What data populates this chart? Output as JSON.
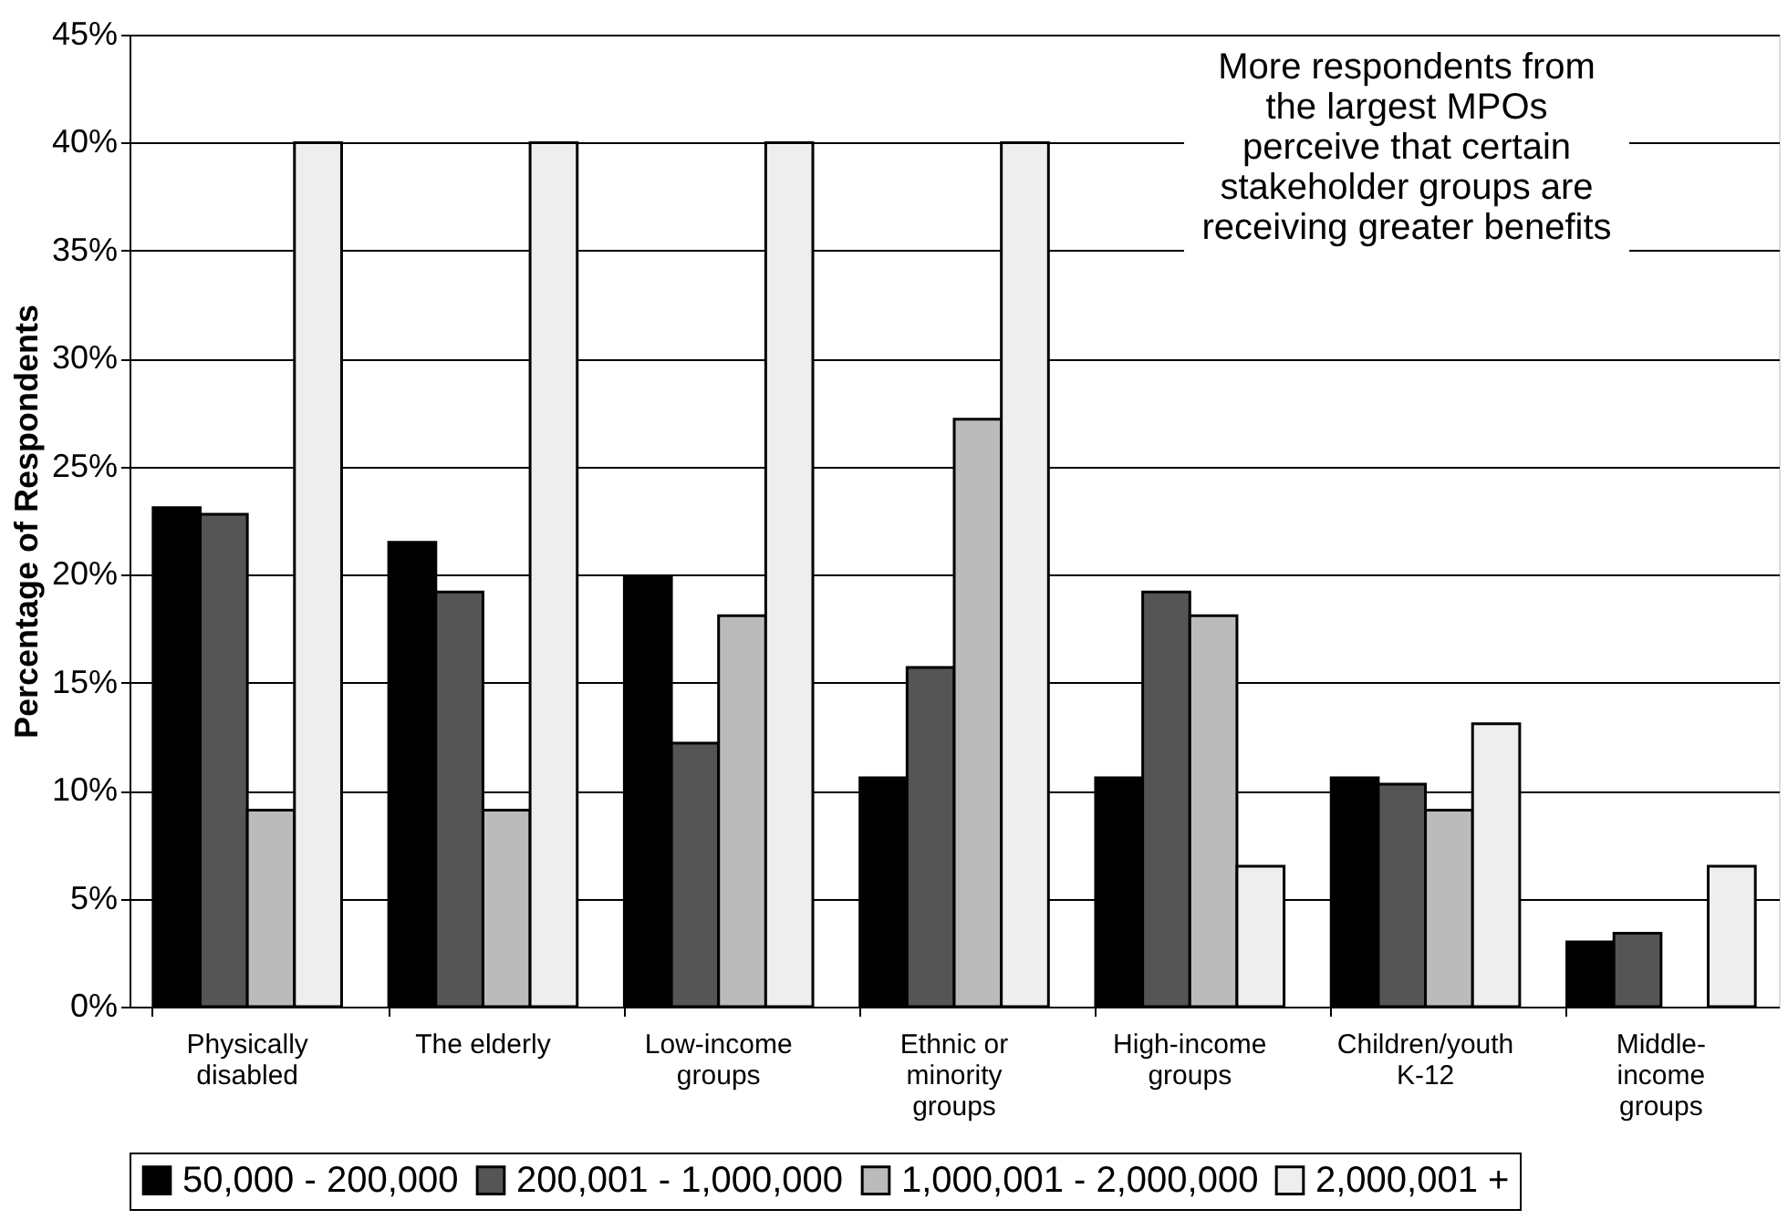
{
  "chart_data": {
    "type": "bar",
    "ylabel": "Percentage of Respondents",
    "categories": [
      "Physically\ndisabled",
      "The elderly",
      "Low-income\ngroups",
      "Ethnic or\nminority\ngroups",
      "High-income\ngroups",
      "Children/youth\nK-12",
      "Middle-\nincome\ngroups"
    ],
    "series": [
      {
        "name": "50,000 - 200,000",
        "color": "#000000",
        "values": [
          23.1,
          21.5,
          19.9,
          10.6,
          10.6,
          10.6,
          3.0
        ]
      },
      {
        "name": "200,001 - 1,000,000",
        "color": "#555555",
        "values": [
          22.8,
          19.2,
          12.2,
          15.7,
          19.2,
          10.3,
          3.4
        ]
      },
      {
        "name": "1,000,001 - 2,000,000",
        "color": "#bbbbbb",
        "values": [
          9.1,
          9.1,
          18.1,
          27.2,
          18.1,
          9.1,
          null
        ]
      },
      {
        "name": "2,000,001 +",
        "color": "#eeeeee",
        "values": [
          40,
          40,
          40,
          40,
          6.5,
          13.1,
          6.5
        ]
      }
    ],
    "ylim": [
      0,
      45
    ],
    "yticks": [
      {
        "value": 0,
        "label": "0%"
      },
      {
        "value": 5,
        "label": "5%"
      },
      {
        "value": 10,
        "label": "10%"
      },
      {
        "value": 15,
        "label": "15%"
      },
      {
        "value": 20,
        "label": "20%"
      },
      {
        "value": 25,
        "label": "25%"
      },
      {
        "value": 30,
        "label": "30%"
      },
      {
        "value": 35,
        "label": "35%"
      },
      {
        "value": 40,
        "label": "40%"
      },
      {
        "value": 45,
        "label": "45%"
      }
    ],
    "grid": "y",
    "legend": "bottom",
    "annotations": [
      "More respondents from\nthe largest MPOs\nperceive that certain\nstakeholder groups are\nreceiving greater benefits"
    ]
  }
}
